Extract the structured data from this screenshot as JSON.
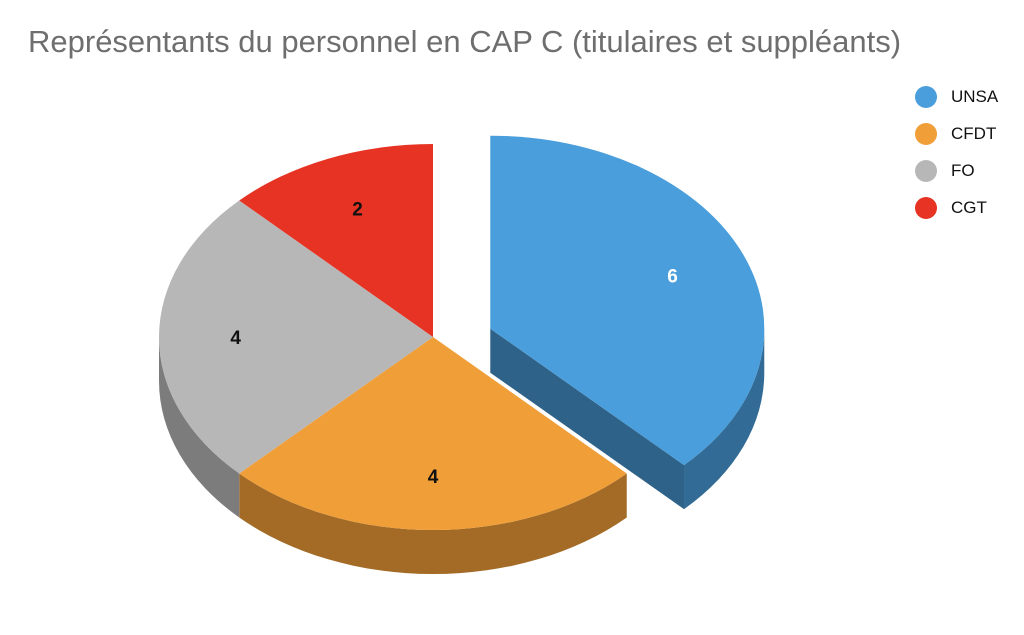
{
  "chart_data": {
    "type": "pie",
    "title": "Représentants du personnel en CAP C (titulaires et suppléants)",
    "categories": [
      "UNSA",
      "CFDT",
      "FO",
      "CGT"
    ],
    "values": [
      6,
      4,
      4,
      2
    ],
    "colors": [
      "#4a9edb",
      "#f09e38",
      "#b7b7b7",
      "#e63323"
    ],
    "label_colors": [
      "#ffffff",
      "#111111",
      "#111111",
      "#111111"
    ],
    "exploded": [
      "UNSA"
    ],
    "style": "3d",
    "legend_position": "right"
  }
}
